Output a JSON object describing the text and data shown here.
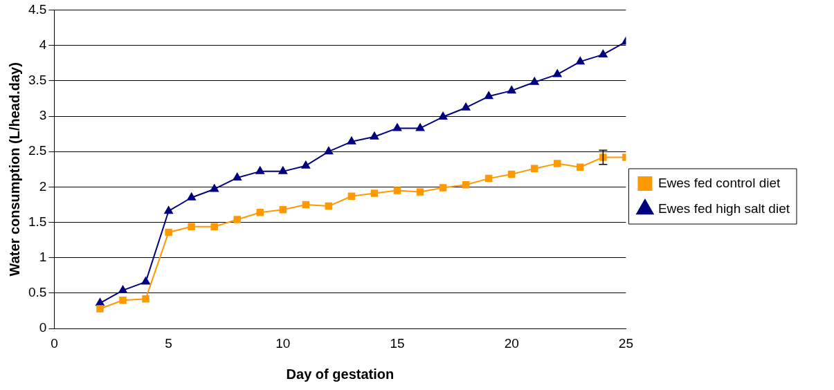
{
  "chart_data": {
    "type": "line",
    "xlabel": "Day of gestation",
    "ylabel": "Water consumption (L/head.day)",
    "x": [
      2,
      3,
      4,
      5,
      6,
      7,
      8,
      9,
      10,
      11,
      12,
      13,
      14,
      15,
      16,
      17,
      18,
      19,
      20,
      21,
      22,
      23,
      24,
      25
    ],
    "series": [
      {
        "name": "Ewes fed control diet",
        "color": "#ff9900",
        "marker": "square",
        "values": [
          0.28,
          0.4,
          0.42,
          1.36,
          1.44,
          1.44,
          1.54,
          1.64,
          1.68,
          1.75,
          1.73,
          1.87,
          1.91,
          1.95,
          1.93,
          1.99,
          2.03,
          2.12,
          2.18,
          2.26,
          2.33,
          2.28,
          2.42,
          2.42
        ],
        "errors": [
          null,
          null,
          null,
          null,
          null,
          null,
          null,
          null,
          null,
          null,
          null,
          null,
          null,
          null,
          null,
          null,
          null,
          null,
          null,
          null,
          null,
          null,
          0.1,
          null
        ]
      },
      {
        "name": "Ewes fed high salt diet",
        "color": "#000080",
        "marker": "triangle",
        "values": [
          0.36,
          0.54,
          0.66,
          1.66,
          1.85,
          1.97,
          2.13,
          2.22,
          2.22,
          2.3,
          2.5,
          2.64,
          2.71,
          2.83,
          2.83,
          2.99,
          3.12,
          3.28,
          3.36,
          3.48,
          3.59,
          3.77,
          3.87,
          4.05
        ]
      }
    ],
    "xlim": [
      0,
      25
    ],
    "xticks": [
      0,
      5,
      10,
      15,
      20,
      25
    ],
    "ylim": [
      0,
      4.5
    ],
    "yticks": [
      0,
      0.5,
      1,
      1.5,
      2,
      2.5,
      3,
      3.5,
      4,
      4.5
    ],
    "grid": "y",
    "legend": "right"
  }
}
